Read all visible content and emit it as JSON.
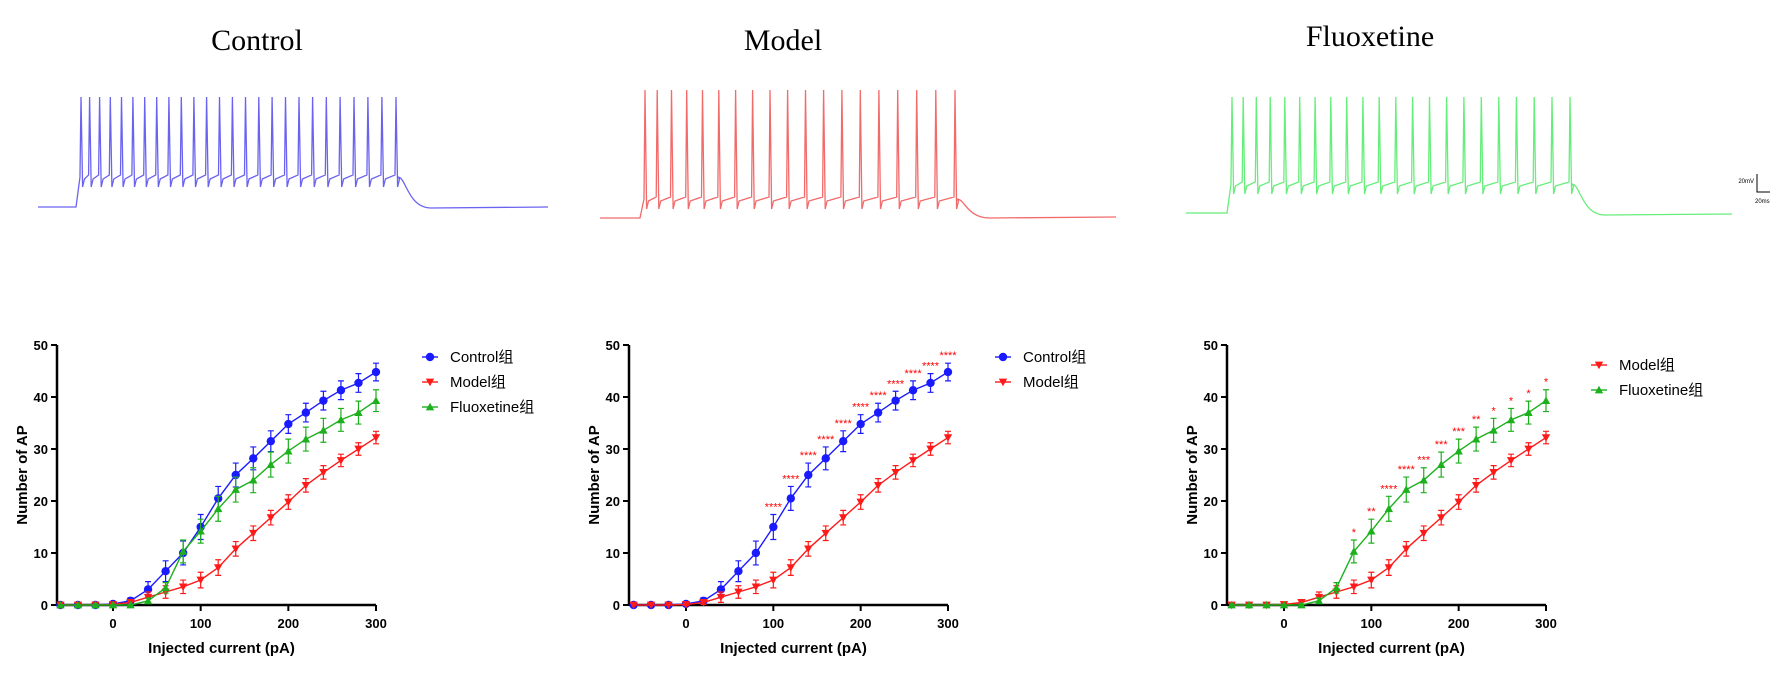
{
  "titles": [
    "Control",
    "Model",
    "Fluoxetine"
  ],
  "scale_bar": {
    "voltage": "20mV",
    "time": "20ms"
  },
  "colors": {
    "Control": "#1a1aff",
    "Model": "#ff1a1a",
    "Fluoxetine": "#1db01d",
    "trace_control": "#6a63f0",
    "trace_model": "#f26a6a",
    "trace_fluoxetine": "#66ee7a"
  },
  "traces": [
    {
      "name": "Control",
      "spikes": 26
    },
    {
      "name": "Model",
      "spikes": 19
    },
    {
      "name": "Fluoxetine",
      "spikes": 22
    }
  ],
  "chart_data": [
    {
      "type": "line",
      "xlabel": "Injected current (pA)",
      "ylabel": "Number of AP",
      "xticks": [
        0,
        100,
        200,
        300
      ],
      "yticks": [
        0,
        10,
        20,
        30,
        40,
        50
      ],
      "xlim": [
        -60,
        300
      ],
      "ylim": [
        0,
        50
      ],
      "x": [
        -60,
        -40,
        -20,
        0,
        20,
        40,
        60,
        80,
        100,
        120,
        140,
        160,
        180,
        200,
        220,
        240,
        260,
        280,
        300
      ],
      "series": [
        {
          "name": "Control组",
          "marker": "circle",
          "color": "#1a1aff",
          "values": [
            0,
            0,
            0,
            0.2,
            0.8,
            3,
            6.5,
            10,
            15,
            20.5,
            25,
            28.2,
            31.5,
            34.8,
            37,
            39.3,
            41.3,
            42.7,
            44.8
          ],
          "errors": [
            0,
            0,
            0,
            0.3,
            0.6,
            1.5,
            2,
            2.3,
            2.4,
            2.3,
            2.3,
            2.2,
            2,
            1.8,
            1.8,
            1.8,
            1.8,
            1.8,
            1.7
          ]
        },
        {
          "name": "Model组",
          "marker": "triangle-down",
          "color": "#ff1a1a",
          "values": [
            0,
            0,
            0,
            0.1,
            0.5,
            1.5,
            2.5,
            3.5,
            4.8,
            7.2,
            10.8,
            13.8,
            16.8,
            19.8,
            23,
            25.5,
            27.8,
            30,
            32.2
          ],
          "errors": [
            0,
            0,
            0,
            0.2,
            0.4,
            1,
            1.2,
            1.3,
            1.5,
            1.5,
            1.4,
            1.4,
            1.4,
            1.4,
            1.3,
            1.3,
            1.2,
            1.2,
            1.2
          ]
        },
        {
          "name": "Fluoxetine组",
          "marker": "triangle-up",
          "color": "#1db01d",
          "values": [
            0,
            0,
            0,
            0,
            0,
            0.8,
            3.3,
            10.3,
            14.2,
            18.5,
            22.2,
            24,
            27,
            29.6,
            31.9,
            33.6,
            35.6,
            37,
            39.3
          ],
          "errors": [
            0,
            0,
            0,
            0,
            0,
            0.5,
            1,
            2.2,
            2.3,
            2.4,
            2.4,
            2.4,
            2.4,
            2.3,
            2.3,
            2.3,
            2.2,
            2.2,
            2.1
          ]
        }
      ],
      "legend": {
        "position": "right",
        "entries": [
          "Control组",
          "Model组",
          "Fluoxetine组"
        ]
      }
    },
    {
      "type": "line",
      "xlabel": "Injected current (pA)",
      "ylabel": "Number of AP",
      "xticks": [
        0,
        100,
        200,
        300
      ],
      "yticks": [
        0,
        10,
        20,
        30,
        40,
        50
      ],
      "xlim": [
        -60,
        300
      ],
      "ylim": [
        0,
        50
      ],
      "x": [
        -60,
        -40,
        -20,
        0,
        20,
        40,
        60,
        80,
        100,
        120,
        140,
        160,
        180,
        200,
        220,
        240,
        260,
        280,
        300
      ],
      "series": [
        {
          "name": "Control组",
          "marker": "circle",
          "color": "#1a1aff",
          "values": [
            0,
            0,
            0,
            0.2,
            0.8,
            3,
            6.5,
            10,
            15,
            20.5,
            25,
            28.2,
            31.5,
            34.8,
            37,
            39.3,
            41.3,
            42.7,
            44.8
          ],
          "errors": [
            0,
            0,
            0,
            0.3,
            0.6,
            1.5,
            2,
            2.3,
            2.4,
            2.3,
            2.3,
            2.2,
            2,
            1.8,
            1.8,
            1.8,
            1.8,
            1.8,
            1.7
          ]
        },
        {
          "name": "Model组",
          "marker": "triangle-down",
          "color": "#ff1a1a",
          "values": [
            0,
            0,
            0,
            0.1,
            0.5,
            1.5,
            2.5,
            3.5,
            4.8,
            7.2,
            10.8,
            13.8,
            16.8,
            19.8,
            23,
            25.5,
            27.8,
            30,
            32.2
          ],
          "errors": [
            0,
            0,
            0,
            0.2,
            0.4,
            1,
            1.2,
            1.3,
            1.5,
            1.5,
            1.4,
            1.4,
            1.4,
            1.4,
            1.3,
            1.3,
            1.2,
            1.2,
            1.2
          ]
        }
      ],
      "legend": {
        "position": "right",
        "entries": [
          "Control组",
          "Model组"
        ]
      },
      "annotations": [
        {
          "x": 100,
          "label": "****"
        },
        {
          "x": 120,
          "label": "****"
        },
        {
          "x": 140,
          "label": "****"
        },
        {
          "x": 160,
          "label": "****"
        },
        {
          "x": 180,
          "label": "****"
        },
        {
          "x": 200,
          "label": "****"
        },
        {
          "x": 220,
          "label": "****"
        },
        {
          "x": 240,
          "label": "****"
        },
        {
          "x": 260,
          "label": "****"
        },
        {
          "x": 280,
          "label": "****"
        },
        {
          "x": 300,
          "label": "****"
        }
      ]
    },
    {
      "type": "line",
      "xlabel": "Injected current (pA)",
      "ylabel": "Number of AP",
      "xticks": [
        0,
        100,
        200,
        300
      ],
      "yticks": [
        0,
        10,
        20,
        30,
        40,
        50
      ],
      "xlim": [
        -60,
        300
      ],
      "ylim": [
        0,
        50
      ],
      "x": [
        -60,
        -40,
        -20,
        0,
        20,
        40,
        60,
        80,
        100,
        120,
        140,
        160,
        180,
        200,
        220,
        240,
        260,
        280,
        300
      ],
      "series": [
        {
          "name": "Model组",
          "marker": "triangle-down",
          "color": "#ff1a1a",
          "values": [
            0,
            0,
            0,
            0.1,
            0.5,
            1.5,
            2.5,
            3.5,
            4.8,
            7.2,
            10.8,
            13.8,
            16.8,
            19.8,
            23,
            25.5,
            27.8,
            30,
            32.2
          ],
          "errors": [
            0,
            0,
            0,
            0.2,
            0.4,
            1,
            1.2,
            1.3,
            1.5,
            1.5,
            1.4,
            1.4,
            1.4,
            1.4,
            1.3,
            1.3,
            1.2,
            1.2,
            1.2
          ]
        },
        {
          "name": "Fluoxetine组",
          "marker": "triangle-up",
          "color": "#1db01d",
          "values": [
            0,
            0,
            0,
            0,
            0,
            0.8,
            3.3,
            10.3,
            14.2,
            18.5,
            22.2,
            24,
            27,
            29.6,
            31.9,
            33.6,
            35.6,
            37,
            39.3
          ],
          "errors": [
            0,
            0,
            0,
            0,
            0,
            0.5,
            1,
            2.2,
            2.3,
            2.4,
            2.4,
            2.4,
            2.4,
            2.3,
            2.3,
            2.3,
            2.2,
            2.2,
            2.1
          ]
        }
      ],
      "legend": {
        "position": "right",
        "entries": [
          "Model组",
          "Fluoxetine组"
        ]
      },
      "annotations": [
        {
          "x": 80,
          "label": "*"
        },
        {
          "x": 100,
          "label": "**"
        },
        {
          "x": 120,
          "label": "****"
        },
        {
          "x": 140,
          "label": "****"
        },
        {
          "x": 160,
          "label": "***"
        },
        {
          "x": 180,
          "label": "***"
        },
        {
          "x": 200,
          "label": "***"
        },
        {
          "x": 220,
          "label": "**"
        },
        {
          "x": 240,
          "label": "*"
        },
        {
          "x": 260,
          "label": "*"
        },
        {
          "x": 280,
          "label": "*"
        },
        {
          "x": 300,
          "label": "*"
        }
      ]
    }
  ]
}
